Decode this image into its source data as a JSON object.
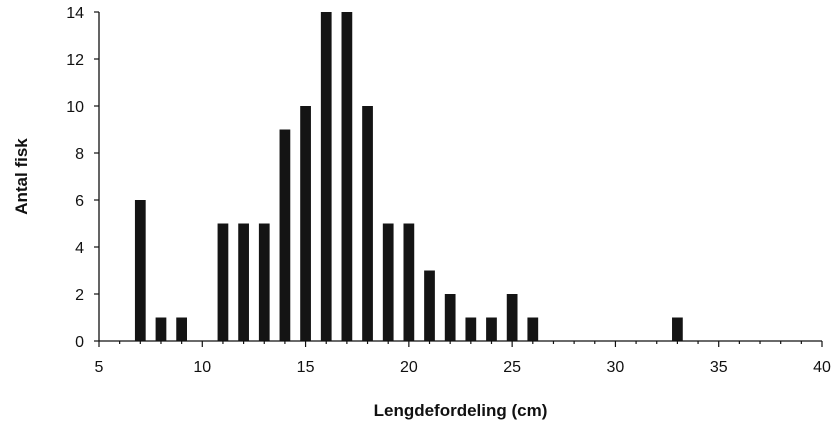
{
  "chart_data": {
    "type": "bar",
    "title": "",
    "xlabel": "Lengdefordeling (cm)",
    "ylabel": "Antal fisk",
    "xlim": [
      5,
      40
    ],
    "ylim": [
      0,
      14
    ],
    "x_ticks": [
      "5",
      "10",
      "15",
      "20",
      "25",
      "30",
      "35",
      "40"
    ],
    "y_ticks": [
      "0",
      "2",
      "4",
      "6",
      "8",
      "10",
      "12",
      "14"
    ],
    "x": [
      7,
      8,
      9,
      11,
      12,
      13,
      14,
      15,
      16,
      17,
      18,
      19,
      20,
      21,
      22,
      23,
      24,
      25,
      26,
      33
    ],
    "values": [
      6,
      1,
      1,
      5,
      5,
      5,
      9,
      10,
      14,
      14,
      10,
      5,
      5,
      3,
      2,
      1,
      1,
      2,
      1,
      1
    ],
    "grid": false,
    "legend": "none",
    "bar_color": "#141414"
  }
}
